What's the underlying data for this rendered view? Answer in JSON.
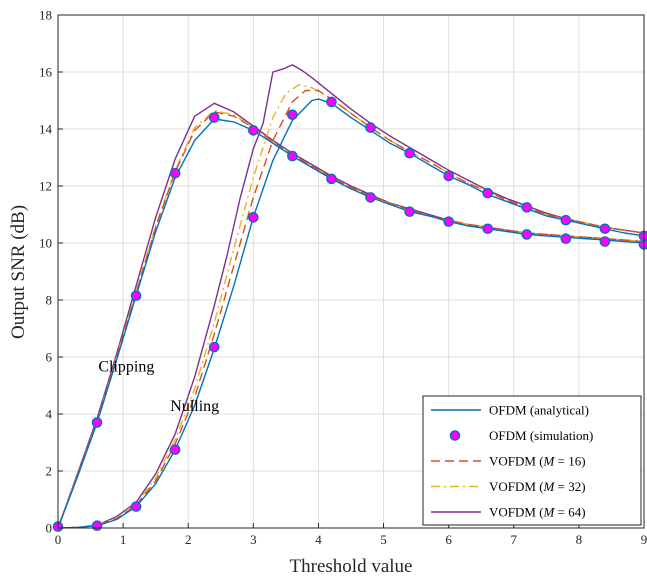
{
  "chart_data": {
    "type": "line",
    "xlabel": "Threshold value",
    "ylabel": "Output SNR (dB)",
    "xlim": [
      0,
      9
    ],
    "ylim": [
      0,
      18
    ],
    "xticks": [
      0,
      1,
      2,
      3,
      4,
      5,
      6,
      7,
      8,
      9
    ],
    "yticks": [
      0,
      2,
      4,
      6,
      8,
      10,
      12,
      14,
      16,
      18
    ],
    "grid": true,
    "legend_position": "bottom-right",
    "annotations": [
      {
        "text": "Clipping",
        "x": 1.05,
        "y": 5.5
      },
      {
        "text": "Nulling",
        "x": 2.1,
        "y": 4.1
      }
    ],
    "series": [
      {
        "name": "OFDM (analytical)",
        "legend_name": "OFDM (analytical)",
        "color": "#0072BD",
        "style": "solid",
        "group": "clipping",
        "x": [
          0,
          0.3,
          0.6,
          0.9,
          1.2,
          1.5,
          1.8,
          2.1,
          2.4,
          2.7,
          3.0,
          3.3,
          3.6,
          3.9,
          4.2,
          4.5,
          4.8,
          5.1,
          5.4,
          5.7,
          6.0,
          6.3,
          6.6,
          6.9,
          7.2,
          7.5,
          7.8,
          8.1,
          8.4,
          8.7,
          9.0
        ],
        "y": [
          0,
          1.8,
          3.7,
          5.9,
          8.15,
          10.4,
          12.3,
          13.6,
          14.35,
          14.25,
          13.95,
          13.5,
          13.05,
          12.65,
          12.25,
          11.9,
          11.6,
          11.35,
          11.1,
          10.95,
          10.75,
          10.6,
          10.5,
          10.4,
          10.3,
          10.25,
          10.2,
          10.15,
          10.1,
          10.05,
          10.0
        ]
      },
      {
        "name": "OFDM (analytical)",
        "color": "#0072BD",
        "style": "solid",
        "group": "nulling",
        "x": [
          0,
          0.3,
          0.6,
          0.9,
          1.2,
          1.5,
          1.8,
          2.1,
          2.4,
          2.7,
          3.0,
          3.3,
          3.6,
          3.9,
          4.0,
          4.2,
          4.5,
          4.8,
          5.1,
          5.4,
          5.7,
          6.0,
          6.3,
          6.6,
          6.9,
          7.2,
          7.5,
          7.8,
          8.1,
          8.4,
          8.7,
          9.0
        ],
        "y": [
          0,
          0.02,
          0.08,
          0.3,
          0.75,
          1.55,
          2.75,
          4.3,
          6.3,
          8.5,
          10.9,
          12.9,
          14.3,
          15.0,
          15.05,
          14.9,
          14.4,
          13.95,
          13.5,
          13.15,
          12.75,
          12.35,
          12.05,
          11.7,
          11.45,
          11.2,
          10.95,
          10.8,
          10.65,
          10.5,
          10.35,
          10.25
        ]
      },
      {
        "name": "OFDM (simulation)",
        "legend_name": "OFDM (simulation)",
        "color": "#0072BD",
        "fill": "#FF00FF",
        "style": "marker",
        "group": "clipping",
        "x": [
          0,
          0.6,
          1.2,
          1.8,
          2.4,
          3.0,
          3.6,
          4.2,
          4.8,
          5.4,
          6.0,
          6.6,
          7.2,
          7.8,
          8.4,
          9.0
        ],
        "y": [
          0.05,
          3.7,
          8.15,
          12.45,
          14.4,
          13.95,
          13.05,
          12.25,
          11.6,
          11.1,
          10.75,
          10.5,
          10.3,
          10.15,
          10.05,
          9.95
        ]
      },
      {
        "name": "OFDM (simulation)",
        "color": "#0072BD",
        "fill": "#FF00FF",
        "style": "marker",
        "group": "nulling",
        "x": [
          0.6,
          1.2,
          1.8,
          2.4,
          3.0,
          3.6,
          4.2,
          4.8,
          5.4,
          6.0,
          6.6,
          7.2,
          7.8,
          8.4,
          9.0
        ],
        "y": [
          0.08,
          0.75,
          2.75,
          6.35,
          10.9,
          14.5,
          14.95,
          14.05,
          13.15,
          12.35,
          11.75,
          11.25,
          10.8,
          10.5,
          10.25
        ]
      },
      {
        "name": "VOFDM (M = 16)",
        "legend_name": "VOFDM (",
        "legend_var": "M",
        "legend_rest": " = 16)",
        "color": "#D95319",
        "style": "dashed",
        "group": "clipping",
        "x": [
          0,
          0.3,
          0.6,
          0.9,
          1.2,
          1.5,
          1.8,
          2.1,
          2.4,
          2.7,
          3.0,
          3.3,
          3.6,
          3.9,
          4.2,
          4.5,
          4.8,
          5.1,
          5.4,
          5.7,
          6.0,
          6.3,
          6.6,
          6.9,
          7.2,
          7.5,
          7.8,
          8.1,
          8.4,
          8.7,
          9.0
        ],
        "y": [
          0,
          1.85,
          3.75,
          6.0,
          8.25,
          10.55,
          12.5,
          13.95,
          14.6,
          14.45,
          14.05,
          13.55,
          13.1,
          12.7,
          12.3,
          11.95,
          11.65,
          11.4,
          11.15,
          10.95,
          10.8,
          10.65,
          10.55,
          10.45,
          10.35,
          10.3,
          10.25,
          10.2,
          10.15,
          10.1,
          10.05
        ]
      },
      {
        "name": "VOFDM (M = 16)",
        "color": "#D95319",
        "style": "dashed",
        "group": "nulling",
        "x": [
          0,
          0.3,
          0.6,
          0.9,
          1.2,
          1.5,
          1.8,
          2.1,
          2.4,
          2.7,
          3.0,
          3.3,
          3.6,
          3.8,
          4.0,
          4.2,
          4.5,
          4.8,
          5.1,
          5.4,
          5.7,
          6.0,
          6.3,
          6.6,
          6.9,
          7.2,
          7.5,
          7.8,
          8.1,
          8.4,
          8.7,
          9.0
        ],
        "y": [
          0,
          0.02,
          0.09,
          0.32,
          0.8,
          1.65,
          2.95,
          4.6,
          6.8,
          9.2,
          11.6,
          13.6,
          14.95,
          15.35,
          15.35,
          15.05,
          14.55,
          14.05,
          13.6,
          13.2,
          12.85,
          12.45,
          12.1,
          11.8,
          11.5,
          11.25,
          11.0,
          10.85,
          10.7,
          10.55,
          10.45,
          10.35
        ]
      },
      {
        "name": "VOFDM (M = 32)",
        "legend_name": "VOFDM (",
        "legend_var": "M",
        "legend_rest": " = 32)",
        "color": "#EDB120",
        "style": "dashdot",
        "group": "clipping",
        "x": [
          0,
          0.3,
          0.6,
          0.9,
          1.2,
          1.5,
          1.8,
          2.1,
          2.4,
          2.7,
          3.0,
          3.3,
          3.6,
          3.9,
          4.2,
          4.5,
          4.8,
          5.1,
          5.4,
          5.7,
          6.0,
          6.3,
          6.6,
          6.9,
          7.2,
          7.5,
          7.8,
          8.1,
          8.4,
          8.7,
          9.0
        ],
        "y": [
          0,
          1.85,
          3.75,
          6.0,
          8.3,
          10.6,
          12.55,
          14.05,
          14.65,
          14.5,
          14.05,
          13.55,
          13.1,
          12.7,
          12.3,
          11.95,
          11.65,
          11.4,
          11.15,
          10.95,
          10.8,
          10.65,
          10.55,
          10.45,
          10.35,
          10.3,
          10.25,
          10.2,
          10.15,
          10.1,
          10.05
        ]
      },
      {
        "name": "VOFDM (M = 32)",
        "color": "#EDB120",
        "style": "dashdot",
        "group": "nulling",
        "x": [
          0,
          0.3,
          0.6,
          0.9,
          1.2,
          1.5,
          1.8,
          2.1,
          2.4,
          2.7,
          3.0,
          3.3,
          3.5,
          3.7,
          3.9,
          4.2,
          4.5,
          4.8,
          5.1,
          5.4,
          5.7,
          6.0,
          6.3,
          6.6,
          6.9,
          7.2,
          7.5,
          7.8,
          8.1,
          8.4,
          8.7,
          9.0
        ],
        "y": [
          0,
          0.02,
          0.1,
          0.35,
          0.85,
          1.75,
          3.1,
          4.9,
          7.2,
          9.8,
          12.3,
          14.4,
          15.25,
          15.55,
          15.45,
          15.05,
          14.55,
          14.05,
          13.6,
          13.2,
          12.85,
          12.45,
          12.1,
          11.8,
          11.5,
          11.25,
          11.0,
          10.85,
          10.7,
          10.55,
          10.45,
          10.35
        ]
      },
      {
        "name": "VOFDM (M = 64)",
        "legend_name": "VOFDM (",
        "legend_var": "M",
        "legend_rest": " = 64)",
        "color": "#7E2F8E",
        "style": "solid",
        "group": "clipping",
        "x": [
          0,
          0.3,
          0.6,
          0.9,
          1.2,
          1.5,
          1.8,
          2.1,
          2.4,
          2.7,
          3.0,
          3.3,
          3.6,
          3.9,
          4.2,
          4.5,
          4.8,
          5.1,
          5.4,
          5.7,
          6.0,
          6.3,
          6.6,
          6.9,
          7.2,
          7.5,
          7.8,
          8.1,
          8.4,
          8.7,
          9.0
        ],
        "y": [
          0,
          1.9,
          3.85,
          6.1,
          8.5,
          10.9,
          12.95,
          14.45,
          14.9,
          14.6,
          14.1,
          13.6,
          13.15,
          12.75,
          12.35,
          12.0,
          11.7,
          11.4,
          11.2,
          11.0,
          10.8,
          10.65,
          10.55,
          10.45,
          10.35,
          10.3,
          10.25,
          10.2,
          10.15,
          10.1,
          10.05
        ]
      },
      {
        "name": "VOFDM (M = 64)",
        "color": "#7E2F8E",
        "style": "solid",
        "group": "nulling",
        "x": [
          0,
          0.3,
          0.6,
          0.9,
          1.2,
          1.5,
          1.8,
          2.1,
          2.4,
          2.6,
          2.8,
          3.0,
          3.15,
          3.3,
          3.45,
          3.6,
          3.75,
          3.9,
          4.2,
          4.5,
          4.8,
          5.1,
          5.4,
          5.7,
          6.0,
          6.3,
          6.6,
          6.9,
          7.2,
          7.5,
          7.8,
          8.1,
          8.4,
          8.7,
          9.0
        ],
        "y": [
          0,
          0.02,
          0.1,
          0.4,
          0.9,
          1.9,
          3.3,
          5.3,
          7.8,
          9.6,
          11.6,
          13.3,
          14.2,
          16.0,
          16.1,
          16.25,
          16.05,
          15.8,
          15.25,
          14.7,
          14.2,
          13.75,
          13.35,
          12.95,
          12.55,
          12.2,
          11.85,
          11.55,
          11.3,
          11.05,
          10.85,
          10.7,
          10.55,
          10.45,
          10.35
        ]
      }
    ]
  }
}
